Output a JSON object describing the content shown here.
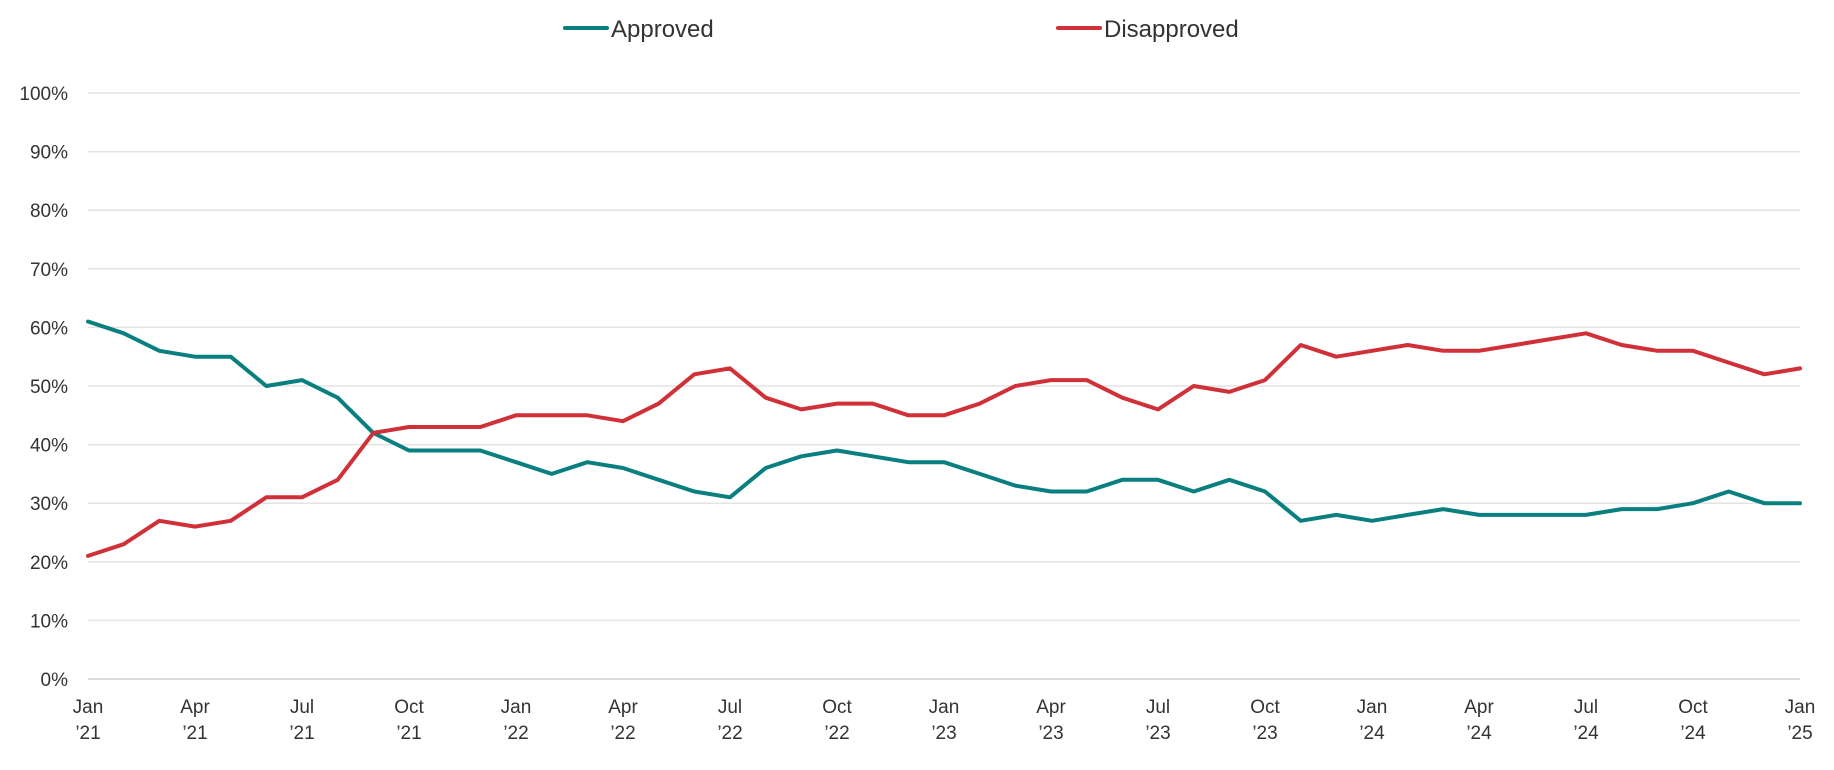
{
  "chart_data": {
    "type": "line",
    "title": "",
    "xlabel": "",
    "ylabel": "",
    "ylim": [
      0,
      100
    ],
    "y_ticks": [
      {
        "value": 0,
        "label": "0%"
      },
      {
        "value": 10,
        "label": "10%"
      },
      {
        "value": 20,
        "label": "20%"
      },
      {
        "value": 30,
        "label": "30%"
      },
      {
        "value": 40,
        "label": "40%"
      },
      {
        "value": 50,
        "label": "50%"
      },
      {
        "value": 60,
        "label": "60%"
      },
      {
        "value": 70,
        "label": "70%"
      },
      {
        "value": 80,
        "label": "80%"
      },
      {
        "value": 90,
        "label": "90%"
      },
      {
        "value": 100,
        "label": "100%"
      }
    ],
    "x": [
      "2021-01",
      "2021-02",
      "2021-03",
      "2021-04",
      "2021-05",
      "2021-06",
      "2021-07",
      "2021-08",
      "2021-09",
      "2021-10",
      "2021-11",
      "2021-12",
      "2022-01",
      "2022-02",
      "2022-03",
      "2022-04",
      "2022-05",
      "2022-06",
      "2022-07",
      "2022-08",
      "2022-09",
      "2022-10",
      "2022-11",
      "2022-12",
      "2023-01",
      "2023-02",
      "2023-03",
      "2023-04",
      "2023-05",
      "2023-06",
      "2023-07",
      "2023-08",
      "2023-09",
      "2023-10",
      "2023-11",
      "2023-12",
      "2024-01",
      "2024-02",
      "2024-03",
      "2024-04",
      "2024-05",
      "2024-06",
      "2024-07",
      "2024-08",
      "2024-09",
      "2024-10",
      "2024-11",
      "2024-12",
      "2025-01"
    ],
    "x_ticks": [
      {
        "month": "Jan",
        "year": "’21"
      },
      {
        "month": "Apr",
        "year": "’21"
      },
      {
        "month": "Jul",
        "year": "’21"
      },
      {
        "month": "Oct",
        "year": "’21"
      },
      {
        "month": "Jan",
        "year": "’22"
      },
      {
        "month": "Apr",
        "year": "’22"
      },
      {
        "month": "Jul",
        "year": "’22"
      },
      {
        "month": "Oct",
        "year": "’22"
      },
      {
        "month": "Jan",
        "year": "’23"
      },
      {
        "month": "Apr",
        "year": "’23"
      },
      {
        "month": "Jul",
        "year": "’23"
      },
      {
        "month": "Oct",
        "year": "’23"
      },
      {
        "month": "Jan",
        "year": "’24"
      },
      {
        "month": "Apr",
        "year": "’24"
      },
      {
        "month": "Jul",
        "year": "’24"
      },
      {
        "month": "Oct",
        "year": "’24"
      },
      {
        "month": "Jan",
        "year": "’25"
      }
    ],
    "series": [
      {
        "name": "Approved",
        "color": "#0a7f7f",
        "values": [
          61,
          59,
          56,
          55,
          55,
          50,
          51,
          48,
          42,
          39,
          39,
          39,
          37,
          35,
          37,
          36,
          34,
          32,
          31,
          36,
          38,
          39,
          38,
          37,
          37,
          35,
          33,
          32,
          32,
          34,
          34,
          32,
          34,
          32,
          27,
          28,
          27,
          28,
          29,
          28,
          28,
          28,
          28,
          29,
          29,
          30,
          32,
          30,
          30
        ]
      },
      {
        "name": "Disapproved",
        "color": "#d03038",
        "values": [
          21,
          23,
          27,
          26,
          27,
          31,
          31,
          34,
          42,
          43,
          43,
          43,
          45,
          45,
          45,
          44,
          47,
          52,
          53,
          48,
          46,
          47,
          47,
          45,
          45,
          47,
          50,
          51,
          51,
          48,
          46,
          50,
          49,
          51,
          57,
          55,
          56,
          57,
          56,
          56,
          57,
          58,
          59,
          57,
          56,
          56,
          54,
          52,
          53
        ]
      }
    ],
    "grid": true,
    "legend_position": "top-center"
  }
}
